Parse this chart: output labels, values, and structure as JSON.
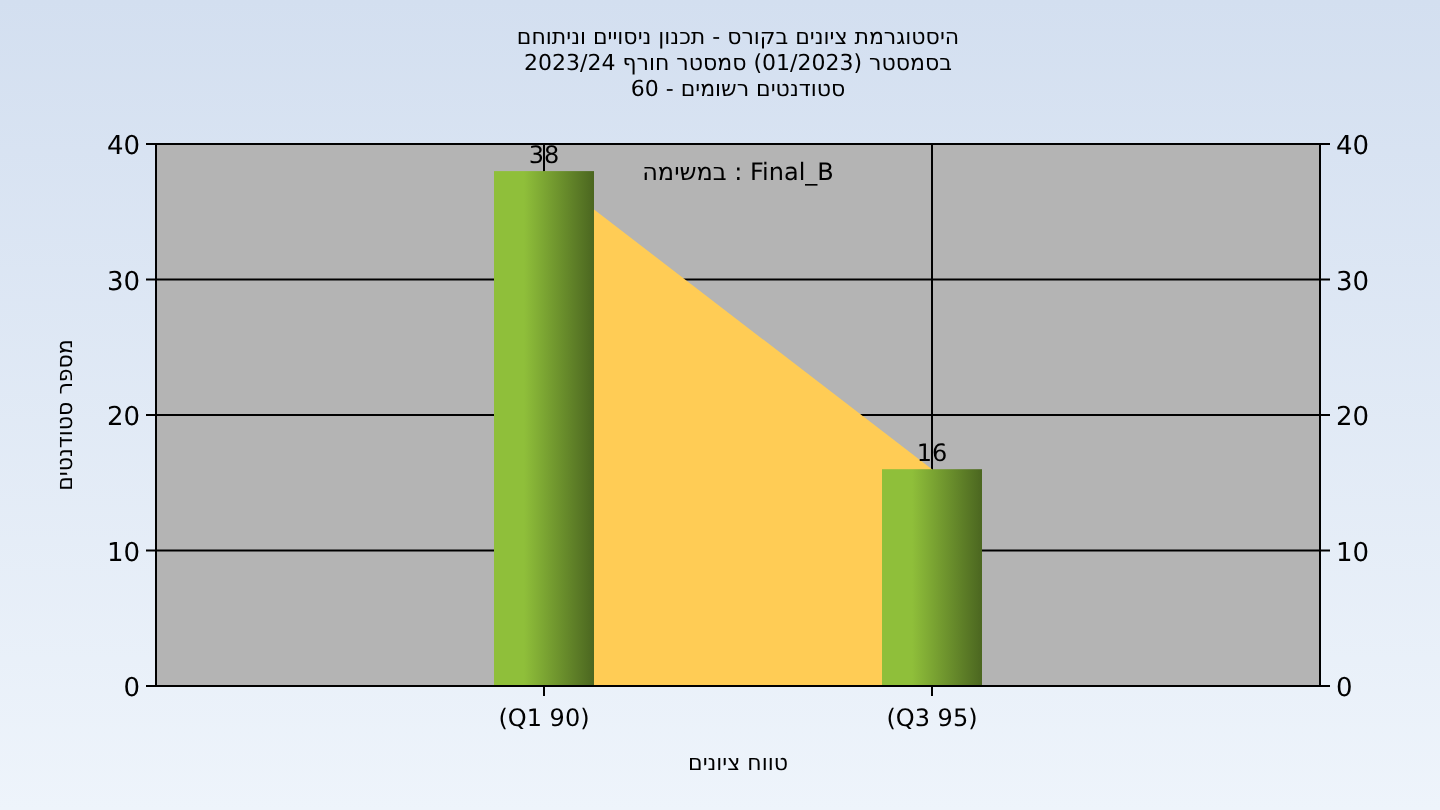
{
  "chart_data": {
    "type": "bar",
    "title": "היסטוגרמת ציונים בקורס - תכנון ניסויים וניתוחם",
    "subtitle": "בסמסטר  (01/2023)  סמסטר חורף 2023/24\nסטודנטים רשומים - 60",
    "xlabel": "טווח ציונים",
    "ylabel": "מספר סטודנטים",
    "annotations": [
      "במשימה : Final_B"
    ],
    "categories": [
      "(Q1 90)",
      "(Q3 95)"
    ],
    "series": [
      {
        "type": "area",
        "color": "#ffcc55",
        "values": [
          38,
          16
        ]
      },
      {
        "color": "#8fbf3a",
        "values": [
          38,
          16
        ],
        "data_labels": true
      }
    ],
    "ylim": [
      0,
      40
    ],
    "yticks": [
      0,
      10,
      20,
      30,
      40
    ],
    "y2lim": [
      0,
      40
    ],
    "y2ticks": [
      0,
      10,
      20,
      30,
      40
    ],
    "grid": true
  }
}
